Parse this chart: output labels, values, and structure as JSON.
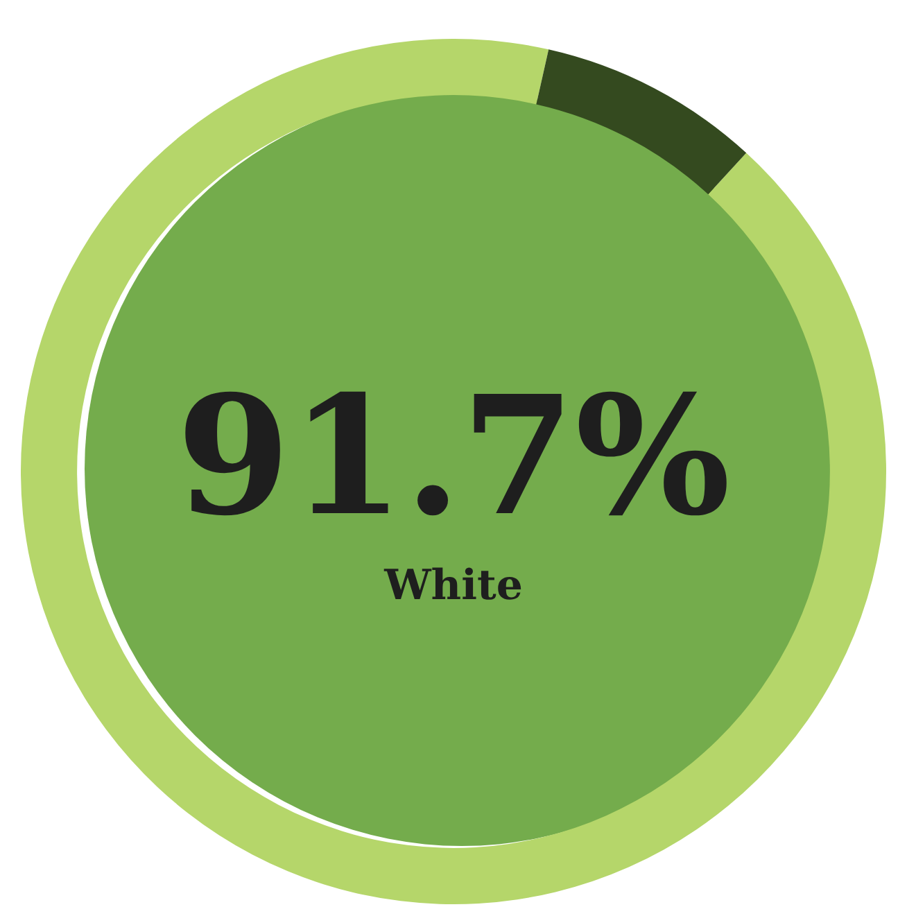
{
  "chart_data": {
    "type": "donut",
    "categories": [
      "White",
      null
    ],
    "values": [
      91.7,
      8.3
    ],
    "colors": [
      "#b5d66a",
      "#344a1f"
    ],
    "value_labels": [
      "91.7%",
      null
    ],
    "legend": false
  }
}
